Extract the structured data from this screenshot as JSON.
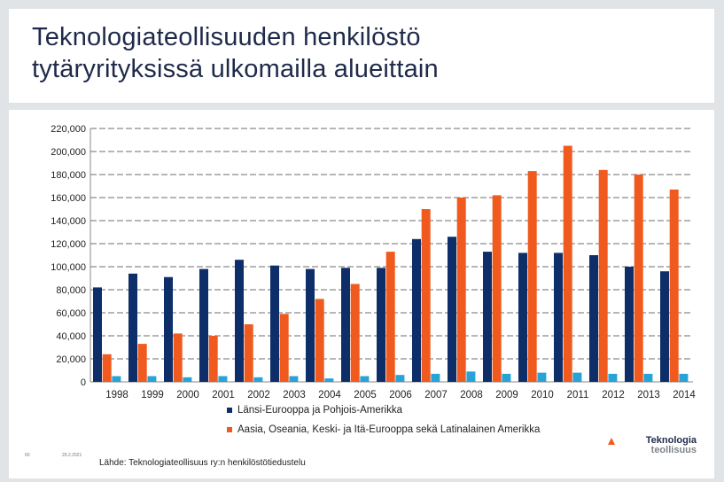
{
  "title": "Teknologiateollisuuden henkilöstö\ntytäryrityksissä ulkomailla alueittain",
  "colors": {
    "series1": "#0d2e68",
    "series2": "#f05a1e",
    "series3": "#27a3d8",
    "grid": "#8a8a8a"
  },
  "chart_data": {
    "type": "bar",
    "categories": [
      "1998",
      "1999",
      "2000",
      "2001",
      "2002",
      "2003",
      "2004",
      "2005",
      "2006",
      "2007",
      "2008",
      "2009",
      "2010",
      "2011",
      "2012",
      "2013",
      "2014"
    ],
    "ylim": [
      0,
      220000
    ],
    "yticks": [
      "220,000",
      "200,000",
      "180,000",
      "160,000",
      "140,000",
      "120,000",
      "100,000",
      "80,000",
      "60,000",
      "40,000",
      "20,000",
      "0"
    ],
    "ytick_values": [
      220000,
      200000,
      180000,
      160000,
      140000,
      120000,
      100000,
      80000,
      60000,
      40000,
      20000,
      0
    ],
    "series": [
      {
        "name": "Länsi-Eurooppa ja Pohjois-Amerikka",
        "values": [
          82000,
          94000,
          91000,
          98000,
          106000,
          101000,
          98000,
          99000,
          99000,
          124000,
          126000,
          113000,
          112000,
          112000,
          110000,
          100000,
          96000
        ]
      },
      {
        "name": "Aasia, Oseania, Keski- ja Itä-Eurooppa sekä Latinalainen Amerikka",
        "values": [
          24000,
          33000,
          42000,
          40000,
          50000,
          59000,
          72000,
          85000,
          113000,
          150000,
          160000,
          162000,
          183000,
          205000,
          184000,
          180000,
          167000
        ]
      },
      {
        "name": "",
        "values": [
          5000,
          5000,
          4000,
          5000,
          4000,
          5000,
          3000,
          5000,
          6000,
          7000,
          9000,
          7000,
          8000,
          8000,
          7000,
          7000,
          7000
        ]
      }
    ]
  },
  "legend": {
    "item1": "Länsi-Eurooppa ja Pohjois-Amerikka",
    "item2": "Aasia, Oseania, Keski- ja Itä-Eurooppa sekä Latinalainen Amerikka"
  },
  "footer": {
    "slide_number": "60",
    "date": "29.2.2021",
    "source": "Lähde: Teknologiateollisuus ry:n henkilöstötiedustelu"
  },
  "logo": {
    "line1": "Teknologia",
    "line2": "teollisuus"
  }
}
